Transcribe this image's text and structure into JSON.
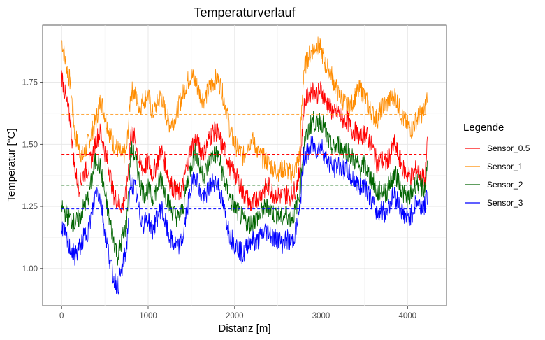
{
  "chart_data": {
    "type": "line",
    "title": "Temperaturverlauf",
    "xlabel": "Distanz [m]",
    "ylabel": "Temperatur [°C]",
    "xlim": [
      -220,
      4450
    ],
    "ylim": [
      0.85,
      1.98
    ],
    "x_ticks": [
      0,
      1000,
      2000,
      3000,
      4000
    ],
    "y_ticks": [
      1.0,
      1.25,
      1.5,
      1.75
    ],
    "y_tick_labels": [
      "1.00",
      "1.25",
      "1.50",
      "1.75"
    ],
    "grid": true,
    "legend": {
      "title": "Legende",
      "position": "right"
    },
    "x": [
      0,
      50,
      100,
      150,
      200,
      250,
      300,
      350,
      400,
      450,
      500,
      550,
      600,
      650,
      700,
      750,
      800,
      850,
      900,
      950,
      1000,
      1050,
      1100,
      1150,
      1200,
      1250,
      1300,
      1350,
      1400,
      1450,
      1500,
      1550,
      1600,
      1650,
      1700,
      1750,
      1800,
      1850,
      1900,
      1950,
      2000,
      2050,
      2100,
      2150,
      2200,
      2250,
      2300,
      2350,
      2400,
      2450,
      2500,
      2550,
      2600,
      2650,
      2700,
      2750,
      2800,
      2850,
      2900,
      2950,
      3000,
      3050,
      3100,
      3150,
      3200,
      3250,
      3300,
      3350,
      3400,
      3450,
      3500,
      3550,
      3600,
      3650,
      3700,
      3750,
      3800,
      3850,
      3900,
      3950,
      4000,
      4050,
      4100,
      4150,
      4200,
      4230
    ],
    "series": [
      {
        "name": "Sensor_0.5",
        "color": "#ff0000",
        "mean": 1.46,
        "values": [
          1.78,
          1.68,
          1.6,
          1.4,
          1.33,
          1.38,
          1.4,
          1.45,
          1.52,
          1.55,
          1.47,
          1.4,
          1.3,
          1.27,
          1.25,
          1.3,
          1.55,
          1.52,
          1.42,
          1.4,
          1.43,
          1.38,
          1.42,
          1.48,
          1.42,
          1.35,
          1.32,
          1.3,
          1.33,
          1.42,
          1.49,
          1.52,
          1.48,
          1.47,
          1.52,
          1.55,
          1.55,
          1.5,
          1.46,
          1.4,
          1.38,
          1.35,
          1.3,
          1.28,
          1.25,
          1.28,
          1.3,
          1.32,
          1.33,
          1.3,
          1.3,
          1.29,
          1.3,
          1.29,
          1.32,
          1.38,
          1.65,
          1.7,
          1.72,
          1.7,
          1.72,
          1.68,
          1.65,
          1.62,
          1.63,
          1.6,
          1.6,
          1.56,
          1.55,
          1.52,
          1.55,
          1.52,
          1.48,
          1.42,
          1.44,
          1.42,
          1.46,
          1.5,
          1.45,
          1.4,
          1.38,
          1.37,
          1.4,
          1.38,
          1.35,
          1.5
        ]
      },
      {
        "name": "Sensor_1",
        "color": "#ff8c00",
        "mean": 1.62,
        "values": [
          1.92,
          1.82,
          1.75,
          1.55,
          1.48,
          1.45,
          1.5,
          1.55,
          1.6,
          1.68,
          1.62,
          1.55,
          1.5,
          1.48,
          1.45,
          1.47,
          1.72,
          1.7,
          1.65,
          1.68,
          1.7,
          1.62,
          1.66,
          1.7,
          1.63,
          1.58,
          1.6,
          1.65,
          1.7,
          1.75,
          1.78,
          1.75,
          1.7,
          1.68,
          1.72,
          1.75,
          1.77,
          1.72,
          1.65,
          1.55,
          1.5,
          1.48,
          1.45,
          1.5,
          1.52,
          1.48,
          1.45,
          1.44,
          1.42,
          1.4,
          1.39,
          1.4,
          1.4,
          1.38,
          1.4,
          1.45,
          1.8,
          1.85,
          1.88,
          1.9,
          1.88,
          1.82,
          1.8,
          1.75,
          1.7,
          1.68,
          1.65,
          1.66,
          1.7,
          1.72,
          1.7,
          1.65,
          1.62,
          1.6,
          1.65,
          1.66,
          1.68,
          1.7,
          1.65,
          1.6,
          1.58,
          1.56,
          1.6,
          1.62,
          1.64,
          1.7
        ]
      },
      {
        "name": "Sensor_2",
        "color": "#006400",
        "mean": 1.335,
        "values": [
          1.25,
          1.22,
          1.2,
          1.18,
          1.2,
          1.24,
          1.28,
          1.36,
          1.45,
          1.4,
          1.3,
          1.2,
          1.12,
          1.05,
          1.12,
          1.18,
          1.48,
          1.45,
          1.35,
          1.3,
          1.32,
          1.28,
          1.32,
          1.37,
          1.3,
          1.25,
          1.22,
          1.2,
          1.24,
          1.34,
          1.42,
          1.47,
          1.4,
          1.38,
          1.42,
          1.46,
          1.46,
          1.4,
          1.33,
          1.28,
          1.25,
          1.22,
          1.2,
          1.18,
          1.18,
          1.2,
          1.22,
          1.24,
          1.25,
          1.22,
          1.22,
          1.2,
          1.22,
          1.2,
          1.23,
          1.3,
          1.5,
          1.55,
          1.6,
          1.58,
          1.6,
          1.55,
          1.5,
          1.48,
          1.5,
          1.48,
          1.48,
          1.45,
          1.43,
          1.4,
          1.42,
          1.38,
          1.35,
          1.3,
          1.32,
          1.3,
          1.35,
          1.38,
          1.35,
          1.3,
          1.28,
          1.3,
          1.35,
          1.33,
          1.32,
          1.42
        ]
      },
      {
        "name": "Sensor_3",
        "color": "#0000ff",
        "mean": 1.24,
        "values": [
          1.18,
          1.12,
          1.08,
          1.05,
          1.08,
          1.12,
          1.15,
          1.22,
          1.32,
          1.28,
          1.15,
          1.05,
          0.96,
          0.93,
          1.0,
          1.08,
          1.35,
          1.32,
          1.22,
          1.18,
          1.2,
          1.15,
          1.2,
          1.25,
          1.18,
          1.12,
          1.1,
          1.08,
          1.12,
          1.24,
          1.33,
          1.38,
          1.3,
          1.28,
          1.32,
          1.35,
          1.35,
          1.28,
          1.2,
          1.13,
          1.1,
          1.08,
          1.05,
          1.1,
          1.12,
          1.1,
          1.13,
          1.15,
          1.15,
          1.12,
          1.12,
          1.1,
          1.12,
          1.1,
          1.14,
          1.22,
          1.45,
          1.47,
          1.5,
          1.48,
          1.5,
          1.45,
          1.42,
          1.4,
          1.42,
          1.4,
          1.4,
          1.36,
          1.35,
          1.32,
          1.35,
          1.3,
          1.26,
          1.22,
          1.24,
          1.22,
          1.27,
          1.3,
          1.26,
          1.22,
          1.2,
          1.22,
          1.27,
          1.25,
          1.25,
          1.3
        ]
      }
    ]
  }
}
